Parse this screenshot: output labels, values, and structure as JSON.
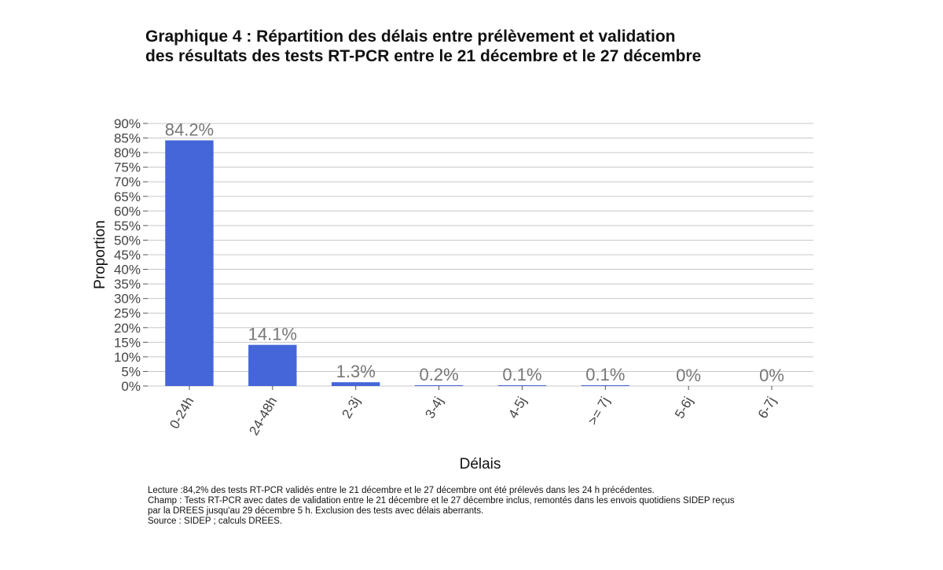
{
  "chart_data": {
    "type": "bar",
    "title_lines": [
      "Graphique 4 : Répartition des délais entre prélèvement et validation",
      "des résultats des tests RT-PCR entre le 21 décembre et le 27 décembre"
    ],
    "xlabel": "Délais",
    "ylabel": "Proportion",
    "categories": [
      "0-24h",
      "24-48h",
      "2-3j",
      "3-4j",
      "4-5j",
      ">= 7j",
      "5-6j",
      "6-7j"
    ],
    "values": [
      84.2,
      14.1,
      1.3,
      0.2,
      0.1,
      0.1,
      0,
      0
    ],
    "data_labels": [
      "84.2%",
      "14.1%",
      "1.3%",
      "0.2%",
      "0.1%",
      "0.1%",
      "0%",
      "0%"
    ],
    "ylim": [
      0,
      90
    ],
    "yticks": [
      0,
      5,
      10,
      15,
      20,
      25,
      30,
      35,
      40,
      45,
      50,
      55,
      60,
      65,
      70,
      75,
      80,
      85,
      90
    ],
    "ytick_labels": [
      "0%",
      "5%",
      "10%",
      "15%",
      "20%",
      "25%",
      "30%",
      "35%",
      "40%",
      "45%",
      "50%",
      "55%",
      "60%",
      "65%",
      "70%",
      "75%",
      "80%",
      "85%",
      "90%"
    ],
    "grid": true,
    "bar_color": "#4466d9"
  },
  "notes": [
    "Lecture :84,2% des tests RT-PCR validés entre le 21 décembre et le 27 décembre ont été prélevés dans les 24 h précédentes.",
    "Champ : Tests RT-PCR avec dates de validation entre le 21 décembre et le 27 décembre inclus, remontés dans les envois quotidiens SIDEP reçus",
    "par la DREES jusqu'au 29 décembre 5 h. Exclusion des tests avec délais aberrants.",
    "Source : SIDEP ; calculs DREES."
  ]
}
